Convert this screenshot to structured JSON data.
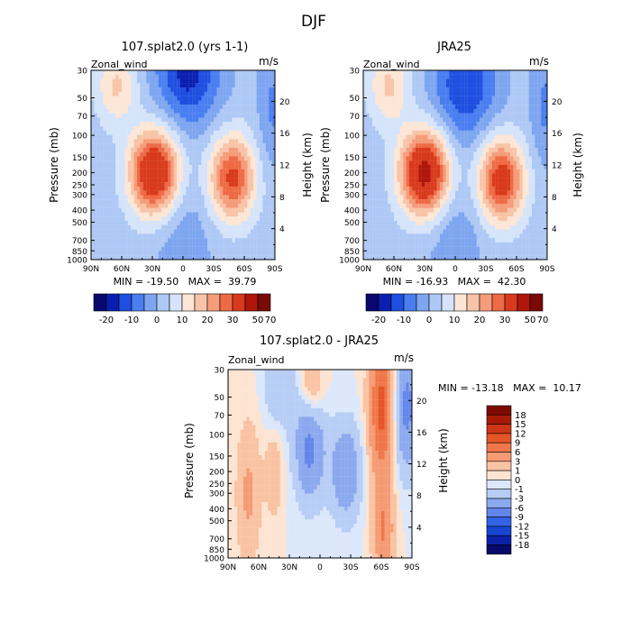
{
  "figure": {
    "title": "DJF"
  },
  "colors": {
    "levels_main": [
      "#08086e",
      "#0a1fb0",
      "#1f4fe0",
      "#4a7ef0",
      "#7ea6f0",
      "#aec8f5",
      "#d5e4fa",
      "#fde6d6",
      "#f8c4a8",
      "#f59c7a",
      "#ee6a45",
      "#d83a1c",
      "#b0160c",
      "#7a0a06"
    ],
    "levels_diff": [
      "#070a6b",
      "#0b22a8",
      "#1746d2",
      "#3464e6",
      "#6286ea",
      "#8ca9ef",
      "#b7cdf5",
      "#dbe7fb",
      "#fde4d2",
      "#f9c3a3",
      "#f59b74",
      "#ef7749",
      "#e55527",
      "#cd3516",
      "#a81a08",
      "#7e0b03"
    ]
  },
  "chart_data": [
    {
      "type": "heatmap",
      "title": "107.splat2.0 (yrs 1-1)",
      "variable_label": "Zonal_wind",
      "units_label": "m/s",
      "ylabel": "Pressure (mb)",
      "ylabel_right": "Height (km)",
      "x_ticks": [
        "90N",
        "60N",
        "30N",
        "0",
        "30S",
        "60S",
        "90S"
      ],
      "y_ticks": [
        "30",
        "50",
        "70",
        "100",
        "150",
        "200",
        "250",
        "300",
        "400",
        "500",
        "700",
        "850",
        "1000"
      ],
      "y_ticks_right": [
        "4",
        "8",
        "12",
        "16",
        "20"
      ],
      "x_range": [
        90,
        -90
      ],
      "y_range_mb": [
        1000,
        30
      ],
      "stats_text": "MIN = -19.50   MAX =  39.79",
      "min": -19.5,
      "max": 39.79,
      "colorbar": {
        "orientation": "horizontal",
        "labels": [
          "-20",
          "-10",
          "0",
          "10",
          "20",
          "30",
          "50",
          "70"
        ],
        "levels": [
          -25,
          -20,
          -15,
          -10,
          -5,
          0,
          5,
          10,
          15,
          20,
          25,
          30,
          40,
          50,
          70
        ]
      },
      "features": {
        "nh_jet": {
          "lat": 28,
          "p_mb": 200,
          "peak_ms": 39.8
        },
        "sh_jet": {
          "lat": -48,
          "p_mb": 220,
          "peak_ms": 30
        },
        "strat_easterly": {
          "lat": -5,
          "p_mb": 30,
          "min_ms": -19.5
        }
      }
    },
    {
      "type": "heatmap",
      "title": "JRA25",
      "variable_label": "Zonal_wind",
      "units_label": "m/s",
      "ylabel": "Pressure (mb)",
      "ylabel_right": "Height (km)",
      "x_ticks": [
        "90N",
        "60N",
        "30N",
        "0",
        "30S",
        "60S",
        "90S"
      ],
      "y_ticks": [
        "30",
        "50",
        "70",
        "100",
        "150",
        "200",
        "250",
        "300",
        "400",
        "500",
        "700",
        "850",
        "1000"
      ],
      "y_ticks_right": [
        "4",
        "8",
        "12",
        "16",
        "20"
      ],
      "x_range": [
        90,
        -90
      ],
      "y_range_mb": [
        1000,
        30
      ],
      "stats_text": "MIN = -16.93   MAX =  42.30",
      "min": -16.93,
      "max": 42.3,
      "colorbar": {
        "orientation": "horizontal",
        "labels": [
          "-20",
          "-10",
          "0",
          "10",
          "20",
          "30",
          "50",
          "70"
        ],
        "levels": [
          -25,
          -20,
          -15,
          -10,
          -5,
          0,
          5,
          10,
          15,
          20,
          25,
          30,
          40,
          50,
          70
        ]
      },
      "features": {
        "nh_jet": {
          "lat": 30,
          "p_mb": 200,
          "peak_ms": 42.3
        },
        "sh_jet": {
          "lat": -45,
          "p_mb": 230,
          "peak_ms": 33
        },
        "strat_easterly": {
          "lat": -10,
          "p_mb": 40,
          "min_ms": -16.9
        }
      }
    },
    {
      "type": "heatmap",
      "title": "107.splat2.0 - JRA25",
      "variable_label": "Zonal_wind",
      "units_label": "m/s",
      "ylabel": "Pressure (mb)",
      "ylabel_right": "Height (km)",
      "x_ticks": [
        "90N",
        "60N",
        "30N",
        "0",
        "30S",
        "60S",
        "90S"
      ],
      "y_ticks": [
        "30",
        "50",
        "70",
        "100",
        "150",
        "200",
        "250",
        "300",
        "400",
        "500",
        "700",
        "850",
        "1000"
      ],
      "y_ticks_right": [
        "4",
        "8",
        "12",
        "16",
        "20"
      ],
      "x_range": [
        90,
        -90
      ],
      "y_range_mb": [
        1000,
        30
      ],
      "stats_text": "MIN = -13.18   MAX =  10.17",
      "min": -13.18,
      "max": 10.17,
      "colorbar": {
        "orientation": "vertical",
        "labels": [
          "18",
          "15",
          "12",
          "9",
          "6",
          "3",
          "1",
          "0",
          "-1",
          "-3",
          "-6",
          "-9",
          "-12",
          "-15",
          "-18"
        ],
        "levels": [
          -18,
          -15,
          -12,
          -9,
          -6,
          -3,
          -1,
          0,
          1,
          3,
          6,
          9,
          12,
          15,
          18
        ]
      },
      "features": {
        "sh_positive_max": {
          "lat": -60,
          "p_mb": 60,
          "peak_ms": 10.2
        },
        "tropical_negative_min": {
          "lat": 10,
          "p_mb": 120,
          "min_ms": -13.2
        }
      }
    }
  ]
}
